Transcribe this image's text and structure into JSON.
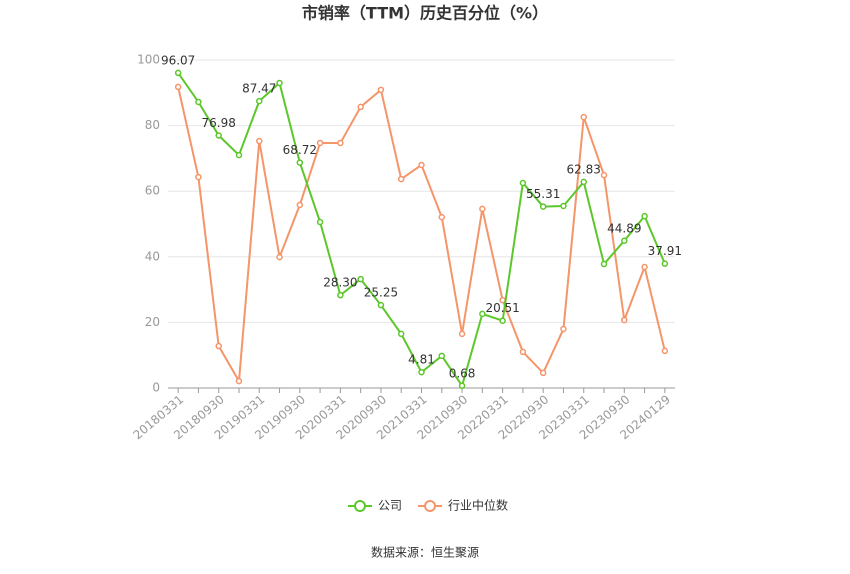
{
  "chart_data": {
    "type": "line",
    "title": "市销率（TTM）历史百分位（%）",
    "source": "数据来源：恒生聚源",
    "categories": [
      "20180331",
      null,
      "20180930",
      null,
      "20190331",
      null,
      "20190930",
      null,
      "20200331",
      null,
      "20200930",
      null,
      "20210331",
      null,
      "20210930",
      null,
      "20220331",
      null,
      "20220930",
      null,
      "20230331",
      null,
      "20230930",
      null,
      "20240129"
    ],
    "series": [
      {
        "name": "公司",
        "color": "#5cc72a",
        "values": [
          96.07,
          87.2,
          76.98,
          71.0,
          87.47,
          93.0,
          68.72,
          50.6,
          28.3,
          33.2,
          25.25,
          16.5,
          4.81,
          9.8,
          0.68,
          22.6,
          20.51,
          62.5,
          55.31,
          55.5,
          62.83,
          37.8,
          44.89,
          52.4,
          37.91
        ],
        "value_labels": [
          "96.07",
          null,
          "76.98",
          null,
          "87.47",
          null,
          "68.72",
          null,
          "28.30",
          null,
          "25.25",
          null,
          "4.81",
          null,
          "0.68",
          null,
          "20.51",
          null,
          "55.31",
          null,
          "62.83",
          null,
          "44.89",
          null,
          "37.91"
        ]
      },
      {
        "name": "行业中位数",
        "color": "#f4956a",
        "values": [
          91.8,
          64.3,
          12.8,
          2.1,
          75.3,
          39.9,
          55.8,
          74.7,
          74.7,
          85.7,
          90.9,
          63.7,
          68.0,
          52.1,
          16.5,
          54.6,
          26.8,
          11.0,
          4.6,
          18.0,
          82.6,
          64.9,
          20.7,
          36.9,
          11.3
        ]
      }
    ],
    "ylim": [
      0,
      100
    ],
    "yticks": [
      0,
      20,
      40,
      60,
      80,
      100
    ],
    "grid": true
  }
}
